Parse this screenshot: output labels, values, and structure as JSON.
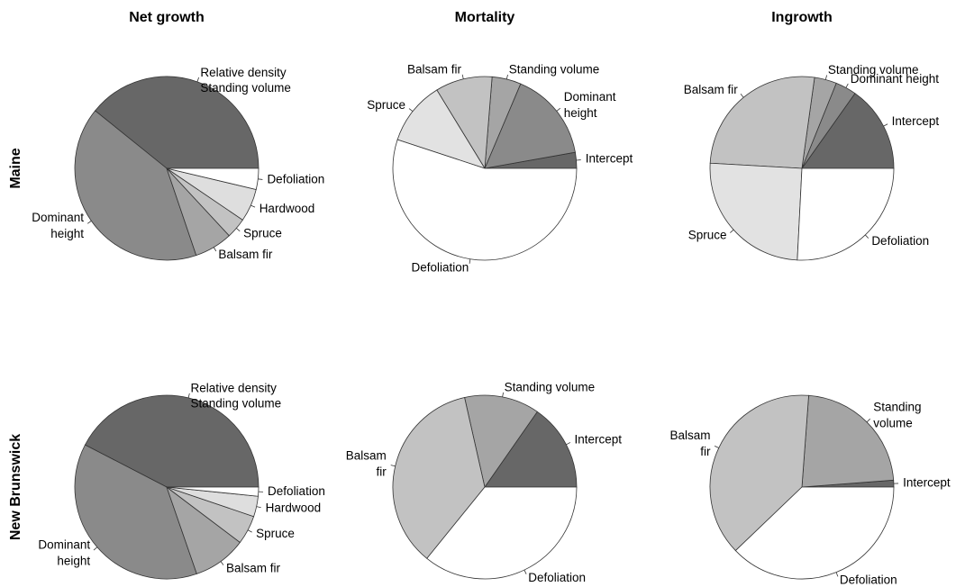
{
  "column_titles": [
    "Net growth",
    "Mortality",
    "Ingrowth"
  ],
  "row_labels": [
    "Maine",
    "New Brunswick"
  ],
  "chart_data": [
    {
      "type": "pie",
      "categories": [
        "Relative density",
        "Standing volume",
        "Dominant\nheight",
        "Balsam fir",
        "Spruce",
        "Hardwood",
        "Defoliation"
      ],
      "values": [
        39.2,
        0,
        41.0,
        6.7,
        3.6,
        5.8,
        3.7
      ],
      "colors": [
        "#676767",
        "#676767",
        "#8a8a8a",
        "#a5a5a5",
        "#c2c2c2",
        "#dedede",
        "#ffffff"
      ]
    },
    {
      "type": "pie",
      "categories": [
        "Intercept",
        "Dominant\nheight",
        "Standing volume",
        "Balsam fir",
        "Spruce",
        "Defoliation"
      ],
      "values": [
        2.8,
        15.8,
        5.1,
        10.0,
        11.2,
        55.0
      ],
      "colors": [
        "#676767",
        "#8a8a8a",
        "#a5a5a5",
        "#c2c2c2",
        "#e2e2e2",
        "#ffffff"
      ]
    },
    {
      "type": "pie",
      "categories": [
        "Intercept",
        "Dominant height",
        "Standing volume",
        "Balsam fir",
        "Spruce",
        "Defoliation"
      ],
      "values": [
        15.2,
        3.7,
        3.9,
        26.3,
        25.1,
        25.8
      ],
      "colors": [
        "#676767",
        "#8a8a8a",
        "#a5a5a5",
        "#c2c2c2",
        "#e2e2e2",
        "#ffffff"
      ]
    },
    {
      "type": "pie",
      "categories": [
        "Relative density",
        "Standing volume",
        "Dominant\nheight",
        "Balsam fir",
        "Spruce",
        "Hardwood",
        "Defoliation"
      ],
      "values": [
        42.4,
        0,
        37.9,
        9.4,
        5.1,
        3.6,
        1.6
      ],
      "colors": [
        "#676767",
        "#676767",
        "#8a8a8a",
        "#a5a5a5",
        "#c2c2c2",
        "#dedede",
        "#ffffff"
      ]
    },
    {
      "type": "pie",
      "categories": [
        "Intercept",
        "Standing volume",
        "Balsam\nfir",
        "Defoliation"
      ],
      "values": [
        15.3,
        13.2,
        35.6,
        35.8
      ],
      "colors": [
        "#676767",
        "#a5a5a5",
        "#c2c2c2",
        "#ffffff"
      ]
    },
    {
      "type": "pie",
      "categories": [
        "Intercept",
        "Standing\nvolume",
        "Balsam\nfir",
        "Defoliation"
      ],
      "values": [
        1.2,
        22.6,
        38.3,
        37.8
      ],
      "colors": [
        "#676767",
        "#a5a5a5",
        "#c2c2c2",
        "#ffffff"
      ]
    }
  ]
}
